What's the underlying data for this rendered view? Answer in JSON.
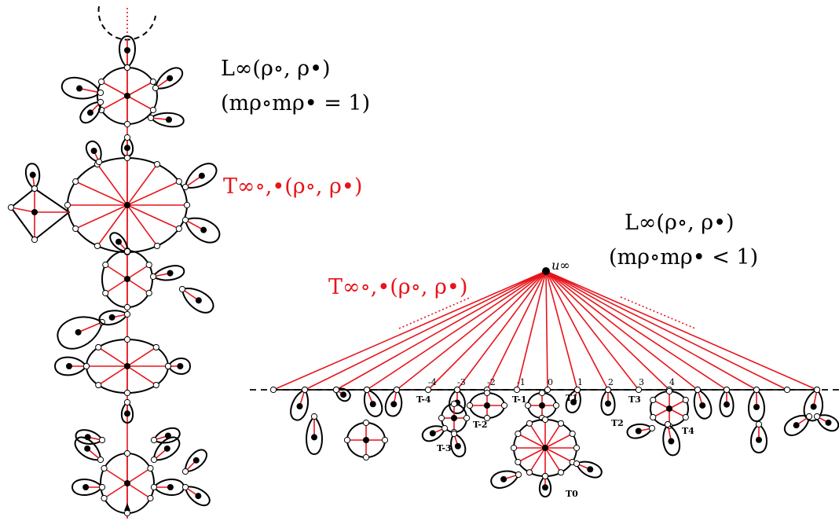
{
  "left_panel": {
    "title": "L∞(ρ∘, ρ•)",
    "condition": "(mρ∘mρ• = 1)",
    "tree_label": "T∞∘,•(ρ∘, ρ•)"
  },
  "right_panel": {
    "title": "L∞(ρ∘, ρ•)",
    "condition": "(mρ∘mρ• < 1)",
    "tree_label": "T∞∘,•(ρ∘, ρ•)",
    "root_label": "u∞",
    "index_labels": [
      "-4",
      "-3",
      "-2",
      "-1",
      "0",
      "1",
      "2",
      "3",
      "4"
    ],
    "subtree_labels": [
      "T-4",
      "T-3",
      "T-2",
      "T-1",
      "T0",
      "T1",
      "T2",
      "T3",
      "T4"
    ]
  },
  "colors": {
    "edge_red": "#e8141b",
    "outline": "#000000",
    "vertex_fill": "#ffffff"
  }
}
